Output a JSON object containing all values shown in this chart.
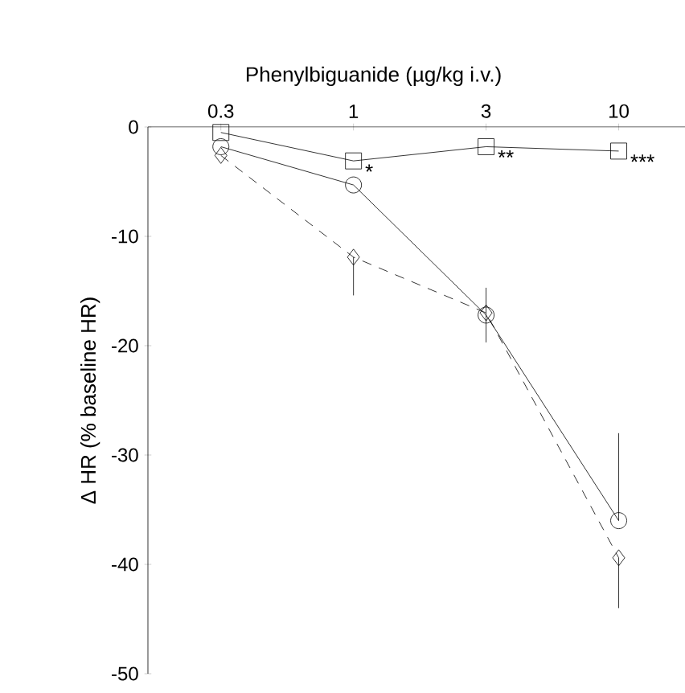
{
  "chart_data": {
    "type": "line",
    "xlabel": "Phenylbiguanide (µg/kg i.v.)",
    "ylabel": "Δ HR (% baseline HR)",
    "categories": [
      "0.3",
      "1",
      "3",
      "10"
    ],
    "ylim": [
      -50,
      0
    ],
    "yticks": [
      0,
      -10,
      -20,
      -30,
      -40,
      -50
    ],
    "series": [
      {
        "color": "#000000",
        "marker": "square",
        "line_style": "solid",
        "values": [
          -0.5,
          -3.1,
          -1.8,
          -2.2
        ]
      },
      {
        "color": "#000000",
        "marker": "circle",
        "line_style": "solid",
        "values": [
          -1.8,
          -5.3,
          -17.2,
          -36
        ],
        "errors": [
          null,
          null,
          2.5,
          [
            -36,
            -28
          ]
        ]
      },
      {
        "color": "#000000",
        "marker": "diamond",
        "line_style": "dashed",
        "values": [
          -2.6,
          -11.9,
          -17,
          -39.4
        ],
        "errors": [
          null,
          [
            -15.4,
            -11.9
          ],
          null,
          [
            -44,
            -39.4
          ]
        ]
      }
    ],
    "annotations": [
      {
        "text": "*",
        "x": "1",
        "y": -3.1
      },
      {
        "text": "**",
        "x": "3",
        "y": -1.8
      },
      {
        "text": "***",
        "x": "10",
        "y": -2.2
      }
    ],
    "grid": false
  }
}
